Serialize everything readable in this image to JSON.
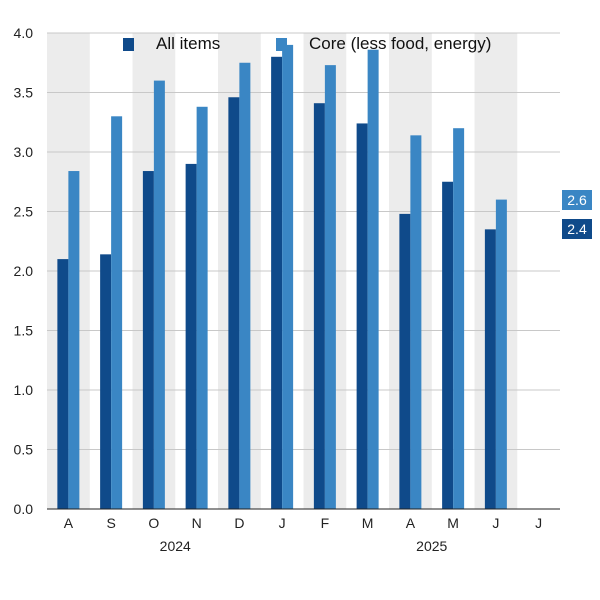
{
  "chart_data": {
    "type": "bar",
    "categories": [
      "A",
      "S",
      "O",
      "N",
      "D",
      "J",
      "F",
      "M",
      "A",
      "M",
      "J",
      "J"
    ],
    "year_labels": [
      {
        "label": "2024",
        "category_index": 2.5
      },
      {
        "label": "2025",
        "category_index": 8.5
      }
    ],
    "series": [
      {
        "name": "All items",
        "color": "#0f4a8a",
        "values": [
          2.1,
          2.14,
          2.84,
          2.9,
          3.46,
          3.8,
          3.41,
          3.24,
          2.48,
          2.75,
          2.35,
          null
        ]
      },
      {
        "name": "Core (less food, energy)",
        "color": "#3a86c4",
        "values": [
          2.84,
          3.3,
          3.6,
          3.38,
          3.75,
          3.9,
          3.73,
          3.86,
          3.14,
          3.2,
          2.6,
          null
        ]
      }
    ],
    "ylim": [
      0,
      4.0
    ],
    "yticks": [
      "0.0",
      "0.5",
      "1.0",
      "1.5",
      "2.0",
      "2.5",
      "3.0",
      "3.5",
      "4.0"
    ],
    "grid": true,
    "legend": "top",
    "end_labels": [
      {
        "label": "2.6",
        "value": 2.6,
        "color": "#3a86c4"
      },
      {
        "label": "2.4",
        "value": 2.35,
        "color": "#0f4a8a"
      }
    ],
    "band_color": "#ececec",
    "grid_color": "#c8c8c8"
  }
}
